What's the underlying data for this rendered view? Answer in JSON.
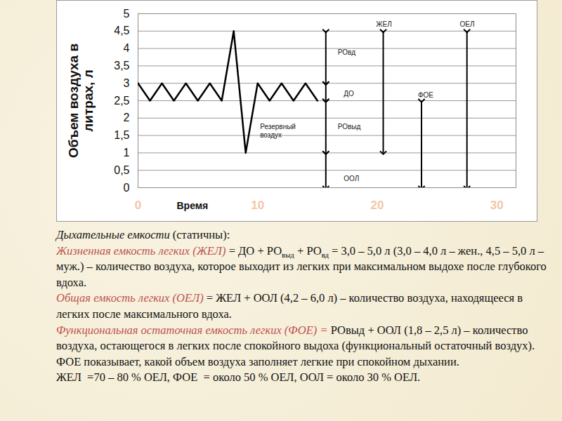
{
  "chart_data": {
    "type": "line",
    "x_label": "Время",
    "y_label": "Объем воздуха в\nлитрах, л",
    "x": [
      0,
      1,
      2,
      3,
      4,
      5,
      6,
      7,
      8,
      9,
      10,
      11,
      12,
      13,
      14,
      15
    ],
    "values": [
      3,
      2.5,
      3,
      2.5,
      3,
      2.5,
      3,
      2.5,
      4.5,
      1,
      3,
      2.5,
      3,
      2.5,
      3,
      2.5
    ],
    "color": "#000000",
    "xlim": [
      0,
      31.6
    ],
    "xticks": [
      0,
      10,
      20,
      30
    ],
    "ylim": [
      0,
      5
    ],
    "yticks": [
      0,
      {
        "value": 0.5,
        "label": "0,5"
      },
      1,
      {
        "value": 1.5,
        "label": "1,5"
      },
      2,
      {
        "value": 2.5,
        "label": "2,5"
      },
      3,
      {
        "value": 3.5,
        "label": "3,5"
      },
      4,
      {
        "value": 4.5,
        "label": "4,5"
      },
      5
    ],
    "grid": true,
    "arrows": [
      {
        "x": 15.7,
        "y1": 4.5,
        "y2": 3
      },
      {
        "x": 15.7,
        "y1": 3,
        "y2": 2.5
      },
      {
        "x": 15.7,
        "y1": 2.5,
        "y2": 1
      },
      {
        "x": 15.7,
        "y1": 1,
        "y2": 0
      },
      {
        "x": 20.5,
        "y1": 4.5,
        "y2": 1
      },
      {
        "x": 23.7,
        "y1": 2.5,
        "y2": 0
      },
      {
        "x": 27.5,
        "y1": 4.5,
        "y2": 0
      }
    ],
    "annotations": [
      {
        "text": "ЖЕЛ",
        "x": 19.9,
        "y": 4.7
      },
      {
        "text": "ОЕЛ",
        "x": 26.9,
        "y": 4.7
      },
      {
        "text": "РОвд",
        "x": 16.7,
        "y": 3.9
      },
      {
        "text": "ДО",
        "x": 17.2,
        "y": 2.7
      },
      {
        "text": "ФОЕ",
        "x": 23.4,
        "y": 2.66
      },
      {
        "text": "РОвыд",
        "x": 16.7,
        "y": 1.75
      },
      {
        "text": "Резервный\nвоздух",
        "x": 10.2,
        "y": 1.64
      },
      {
        "text": "ООЛ",
        "x": 17.2,
        "y": 0.26
      }
    ]
  },
  "notes": [
    [
      {
        "text": "Дыхательные емкости",
        "italic": true
      },
      {
        "text": " (статичны):"
      }
    ],
    [
      {
        "text": "Жизненная емкость легких (ЖЕЛ)",
        "italic": true,
        "color": "#c0504d"
      },
      {
        "text": " = ДО + РО"
      },
      {
        "text": "выд",
        "sub": true
      },
      {
        "text": " + РО"
      },
      {
        "text": "вд",
        "sub": true
      },
      {
        "text": " = 3,0 – 5,0 л (3,0 – 4,0 л – жен., 4,5 – 5,0 л – муж.) – количество воздуха, которое выходит из легких при максимальном выдохе после глубокого вдоха."
      }
    ],
    [
      {
        "text": "Общая емкость легких (ОЕЛ)",
        "italic": true,
        "color": "#c0504d"
      },
      {
        "text": " = ЖЕЛ + ООЛ (4,2 – 6,0 л) – количество воздуха, находящееся в легких после максимального вдоха."
      }
    ],
    [
      {
        "text": "Функциональная остаточная емкость легких (ФОЕ) =",
        "italic": true,
        "color": "#c0504d"
      },
      {
        "text": " РОвыд + ООЛ (1,8 – 2,5 л) – количество воздуха, остающегося в легких после спокойного выдоха (функциональный остаточный воздух). ФОЕ показывает, какой объем воздуха заполняет легкие при спокойном дыхании."
      }
    ],
    [
      {
        "text": "ЖЕЛ  =70 – 80 % ОЕЛ, ФОЕ  = около 50 % ОЕЛ, ООЛ = около 30 % ОЕЛ."
      }
    ]
  ]
}
